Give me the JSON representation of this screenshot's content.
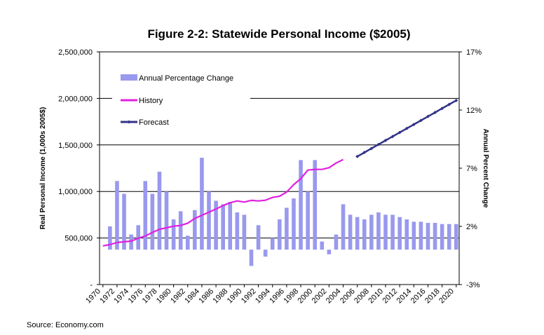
{
  "chart_data": {
    "type": "bar+line",
    "title": "Figure 2-2: Statewide Personal Income ($2005)",
    "ylabel_left": "Real Personal Income (1,000s 2005$)",
    "ylabel_right": "Annual Percent Change",
    "source": "Source: Economy.com",
    "ylim_left": [
      0,
      2500000
    ],
    "ylim_right": [
      -3,
      17
    ],
    "left_ticks": [
      "-",
      "500,000",
      "1,000,000",
      "1,500,000",
      "2,000,000",
      "2,500,000"
    ],
    "left_tick_values": [
      0,
      500000,
      1000000,
      1500000,
      2000000,
      2500000
    ],
    "right_ticks": [
      "-3%",
      "2%",
      "7%",
      "12%",
      "17%"
    ],
    "right_tick_values": [
      -3,
      2,
      7,
      12,
      17
    ],
    "x_ticks": [
      "1970",
      "1972",
      "1974",
      "1976",
      "1978",
      "1980",
      "1982",
      "1984",
      "1986",
      "1988",
      "1990",
      "1992",
      "1994",
      "1996",
      "1998",
      "2000",
      "2002",
      "2004",
      "2006",
      "2008",
      "2010",
      "2012",
      "2014",
      "2016",
      "2018",
      "2020"
    ],
    "grid": true,
    "legend_position": "top-left",
    "series": [
      {
        "name": "Annual Percentage Change",
        "type": "bar",
        "axis": "right",
        "color": "#9999ee",
        "x": [
          1971,
          1972,
          1973,
          1974,
          1975,
          1976,
          1977,
          1978,
          1979,
          1980,
          1981,
          1982,
          1983,
          1984,
          1985,
          1986,
          1987,
          1988,
          1989,
          1990,
          1991,
          1992,
          1993,
          1994,
          1995,
          1996,
          1997,
          1998,
          1999,
          2000,
          2001,
          2002,
          2003,
          2004,
          2005,
          2006,
          2007,
          2008,
          2009,
          2010,
          2011,
          2012,
          2013,
          2014,
          2015,
          2016,
          2017,
          2018,
          2019,
          2020
        ],
        "values": [
          2.0,
          5.9,
          4.8,
          1.3,
          2.1,
          5.9,
          4.8,
          6.7,
          5.0,
          2.6,
          3.3,
          1.2,
          3.4,
          7.9,
          5.0,
          4.2,
          3.9,
          4.1,
          3.2,
          3.0,
          -1.4,
          2.1,
          -0.6,
          1.0,
          2.6,
          3.6,
          4.4,
          7.7,
          5.0,
          7.7,
          0.7,
          -0.4,
          1.3,
          3.9,
          3.0,
          2.8,
          2.6,
          3.0,
          3.2,
          3.0,
          3.0,
          2.8,
          2.6,
          2.4,
          2.4,
          2.3,
          2.3,
          2.2,
          2.2,
          2.2
        ]
      },
      {
        "name": "History",
        "type": "line",
        "axis": "left",
        "color": "#e020e0",
        "x": [
          1970,
          1971,
          1972,
          1973,
          1974,
          1975,
          1976,
          1977,
          1978,
          1979,
          1980,
          1981,
          1982,
          1983,
          1984,
          1985,
          1986,
          1987,
          1988,
          1989,
          1990,
          1991,
          1992,
          1993,
          1994,
          1995,
          1996,
          1997,
          1998,
          1999,
          2000,
          2001,
          2002,
          2003,
          2004
        ],
        "values": [
          416000,
          429000,
          452000,
          459000,
          467000,
          497000,
          522000,
          560000,
          593000,
          610000,
          627000,
          635000,
          660000,
          710000,
          743000,
          778000,
          811000,
          849000,
          879000,
          898000,
          886000,
          904000,
          898000,
          906000,
          936000,
          949000,
          994000,
          1074000,
          1137000,
          1230000,
          1237000,
          1237000,
          1255000,
          1305000,
          1343000
        ]
      },
      {
        "name": "Forecast",
        "type": "line",
        "axis": "left",
        "color": "#333388",
        "x": [
          2006,
          2007,
          2008,
          2009,
          2010,
          2011,
          2012,
          2013,
          2014,
          2015,
          2016,
          2017,
          2018,
          2019,
          2020
        ],
        "values": [
          1376000,
          1419000,
          1462000,
          1505000,
          1548000,
          1591000,
          1634000,
          1677000,
          1720000,
          1763000,
          1806000,
          1849000,
          1892000,
          1935000,
          1978000
        ]
      }
    ]
  }
}
